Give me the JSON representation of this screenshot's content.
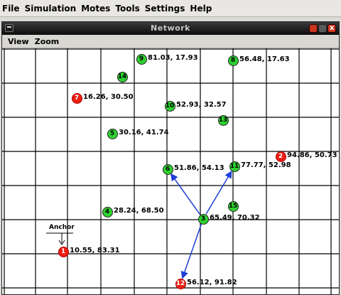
{
  "menu": [
    {
      "name": "menu-file",
      "label": "File"
    },
    {
      "name": "menu-simulation",
      "label": "Simulation"
    },
    {
      "name": "menu-motes",
      "label": "Motes"
    },
    {
      "name": "menu-tools",
      "label": "Tools"
    },
    {
      "name": "menu-settings",
      "label": "Settings"
    },
    {
      "name": "menu-help",
      "label": "Help"
    }
  ],
  "window": {
    "title": "Network",
    "close_glyph": "x",
    "menu": [
      {
        "name": "menu-view",
        "label": "View"
      },
      {
        "name": "menu-zoom",
        "label": "Zoom"
      }
    ]
  },
  "colors": {
    "sensor": "#2fd12f",
    "anchor": "#f01d12",
    "edge": "#1e3fd6",
    "grid": "#000000"
  },
  "anchor_label": "Anchor",
  "nodes": [
    {
      "id": "1",
      "type": "anchor",
      "label": "10.55, 83.31"
    },
    {
      "id": "2",
      "type": "anchor",
      "label": "94.86, 50.73"
    },
    {
      "id": "7",
      "type": "anchor",
      "label": "16.26, 30.50"
    },
    {
      "id": "12",
      "type": "anchor",
      "label": "56.12, 91.82"
    },
    {
      "id": "3",
      "type": "sensor",
      "label": "65.49, 70.32"
    },
    {
      "id": "4",
      "type": "sensor",
      "label": "28.24, 68.50"
    },
    {
      "id": "5",
      "type": "sensor",
      "label": "30.16, 41.74"
    },
    {
      "id": "6",
      "type": "sensor",
      "label": "51.86, 54.13"
    },
    {
      "id": "8",
      "type": "sensor",
      "label": "56.48, 17.63"
    },
    {
      "id": "9",
      "type": "sensor",
      "label": "81.03, 17.93"
    },
    {
      "id": "10",
      "type": "sensor",
      "label": "52.93, 32.57"
    },
    {
      "id": "11",
      "type": "sensor",
      "label": "77.77, 52.98"
    },
    {
      "id": "13",
      "type": "sensor",
      "label": ""
    },
    {
      "id": "14",
      "type": "sensor",
      "label": ""
    },
    {
      "id": "15",
      "type": "sensor",
      "label": ""
    }
  ],
  "edges": [
    {
      "from": "3",
      "to": "6"
    },
    {
      "from": "3",
      "to": "11"
    },
    {
      "from": "3",
      "to": "12"
    }
  ]
}
